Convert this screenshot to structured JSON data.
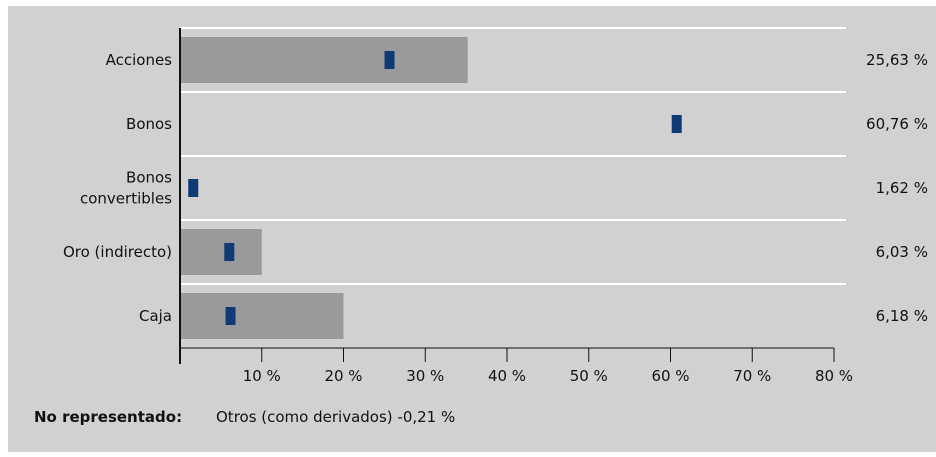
{
  "colors": {
    "panel_background": "#d1d1d1",
    "benchmark_bar": "#9a9a9a",
    "fund_marker": "#0f3a73",
    "gridline": "#ffffff",
    "axis": "#111111"
  },
  "chart_data": {
    "type": "bar",
    "orientation": "horizontal",
    "categories": [
      "Acciones",
      "Bonos",
      "Bonos convertibles",
      "Oro (indirecto)",
      "Caja"
    ],
    "value_labels": [
      "25,63 %",
      "60,76 %",
      "1,62 %",
      "6,03 %",
      "6,18 %"
    ],
    "series": [
      {
        "role": "bars",
        "values": [
          35.2,
          0,
          0,
          10.0,
          20.0
        ]
      },
      {
        "role": "markers",
        "values": [
          25.63,
          60.76,
          1.62,
          6.03,
          6.18
        ]
      }
    ],
    "xlim": [
      0,
      80
    ],
    "x_ticks": [
      10,
      20,
      30,
      40,
      50,
      60,
      70,
      80
    ],
    "x_tick_labels": [
      "10 %",
      "20 %",
      "30 %",
      "40 %",
      "50 %",
      "60 %",
      "70 %",
      "80 %"
    ],
    "grid": "horizontal separators between categories",
    "legend": "none"
  },
  "footnote": {
    "label": "No representado:",
    "text": "Otros (como derivados) -0,21 %"
  }
}
